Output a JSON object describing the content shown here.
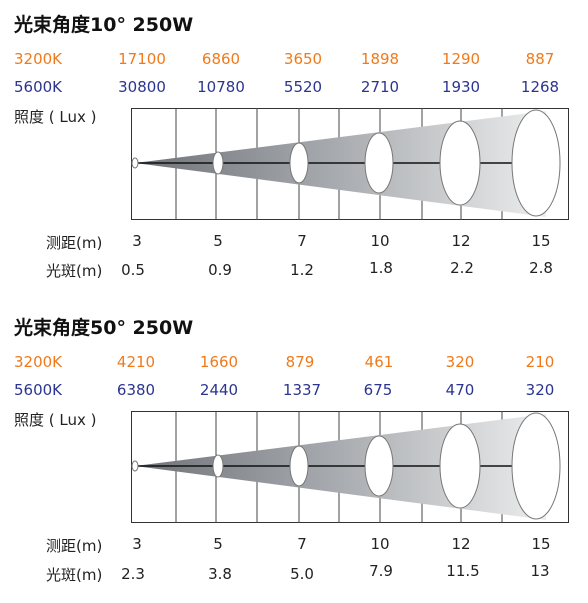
{
  "sections": [
    {
      "title": "光束角度10° 250W",
      "row_3200": {
        "label": "3200K",
        "values": [
          "17100",
          "6860",
          "3650",
          "1898",
          "1290",
          "887"
        ]
      },
      "row_5600": {
        "label": "5600K",
        "values": [
          "30800",
          "10780",
          "5520",
          "2710",
          "1930",
          "1268"
        ]
      },
      "illum_label": "照度 ( Lux )",
      "distance_label": "测距(m)",
      "distances": [
        "3",
        "5",
        "7",
        "10",
        "12",
        "15"
      ],
      "spot_label": "光斑(m)",
      "spots": [
        "0.5",
        "0.9",
        "1.2",
        "1.8",
        "2.2",
        "2.8"
      ]
    },
    {
      "title": "光束角度50° 250W",
      "row_3200": {
        "label": "3200K",
        "values": [
          "4210",
          "1660",
          "879",
          "461",
          "320",
          "210"
        ]
      },
      "row_5600": {
        "label": "5600K",
        "values": [
          "6380",
          "2440",
          "1337",
          "675",
          "470",
          "320"
        ]
      },
      "illum_label": "照度 ( Lux )",
      "distance_label": "测距(m)",
      "distances": [
        "3",
        "5",
        "7",
        "10",
        "12",
        "15"
      ],
      "spot_label": "光斑(m)",
      "spots": [
        "2.3",
        "3.8",
        "5.0",
        "7.9",
        "11.5",
        "13"
      ]
    }
  ],
  "colors": {
    "k3200": "#f07a1a",
    "k5600": "#2b3590"
  }
}
